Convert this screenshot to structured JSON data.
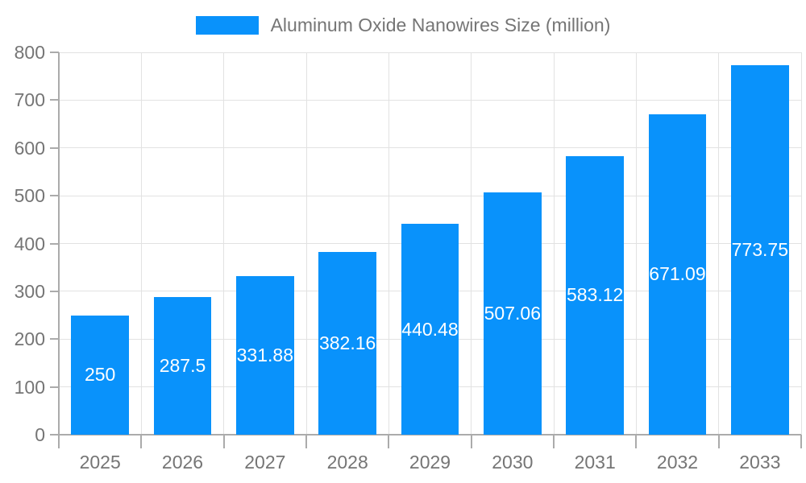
{
  "chart_data": {
    "type": "bar",
    "title": "Aluminum Oxide Nanowires Size (million)",
    "categories": [
      "2025",
      "2026",
      "2027",
      "2028",
      "2029",
      "2030",
      "2031",
      "2032",
      "2033"
    ],
    "values": [
      250,
      287.5,
      331.88,
      382.16,
      440.48,
      507.06,
      583.12,
      671.09,
      773.75
    ],
    "value_labels": [
      "250",
      "287.5",
      "331.88",
      "382.16",
      "440.48",
      "507.06",
      "583.12",
      "671.09",
      "773.75"
    ],
    "ytick_labels": [
      "0",
      "100",
      "200",
      "300",
      "400",
      "500",
      "600",
      "700",
      "800"
    ],
    "xlabel": "",
    "ylabel": "",
    "ylim": [
      0,
      800
    ],
    "ytick_step": 100,
    "grid": true,
    "legend_position": "top",
    "colors": {
      "bar": "#0992fb",
      "value_text": "#ffffff",
      "axis_text": "#757575",
      "axis_line": "#ababab",
      "gridline": "#e2e2e2"
    }
  }
}
